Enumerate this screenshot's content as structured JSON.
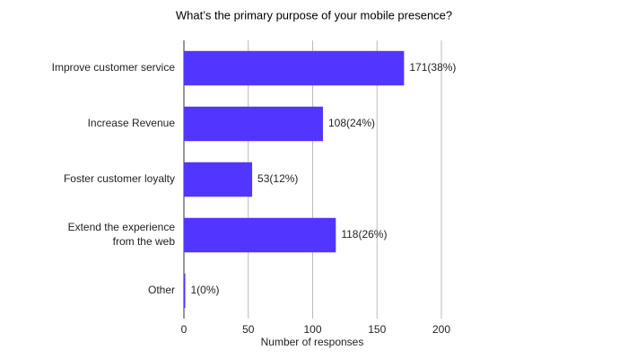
{
  "chart_data": {
    "type": "bar",
    "orientation": "horizontal",
    "title": "What’s the primary purpose of your mobile presence?",
    "categories": [
      "Improve customer service",
      "Increase Revenue",
      "Foster customer loyalty",
      "Extend the experience\nfrom the web",
      "Other"
    ],
    "values": [
      171,
      108,
      53,
      118,
      1
    ],
    "value_labels": [
      "171(38%)",
      "108(24%)",
      "53(12%)",
      "118(26%)",
      "1(0%)"
    ],
    "color": "#5236ff",
    "xlabel": "Number of responses",
    "xlim": [
      0,
      200
    ],
    "xticks": [
      0,
      50,
      100,
      150,
      200
    ],
    "grid": true
  }
}
